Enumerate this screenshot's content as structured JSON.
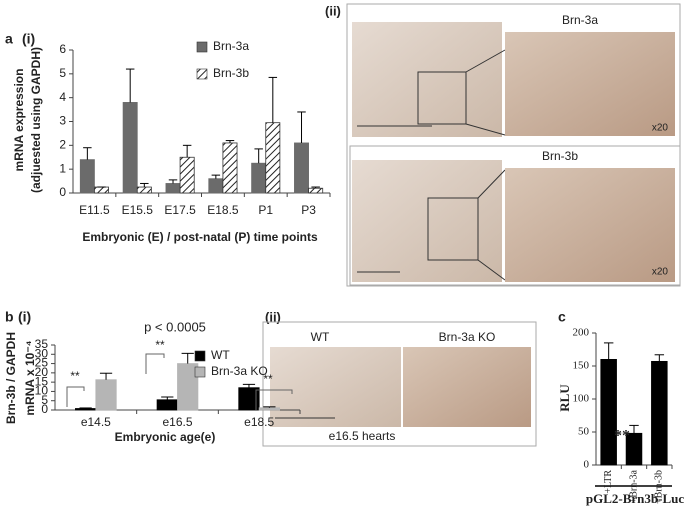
{
  "chart_data": [
    {
      "type": "bar",
      "xlabel": "Embryonic  (E) / post-natal (P) time points",
      "ylabel": [
        "mRNA expression",
        "(adjuested using GAPDH)"
      ],
      "categories": [
        "E11.5",
        "E15.5",
        "E17.5",
        "E18.5",
        "P1",
        "P3"
      ],
      "series": [
        {
          "name": "Brn-3a",
          "color": "#6b6b6b",
          "values": [
            1.4,
            3.8,
            0.4,
            0.6,
            1.25,
            2.1
          ],
          "errors": [
            0.5,
            1.4,
            0.15,
            0.15,
            0.6,
            1.3
          ]
        },
        {
          "name": "Brn-3b",
          "color": "#ffffff",
          "hatch": true,
          "values": [
            0.25,
            0.25,
            1.5,
            2.1,
            2.95,
            0.2
          ],
          "errors": [
            0,
            0.15,
            0.5,
            0.1,
            1.9,
            0.05
          ]
        }
      ],
      "ylim": [
        0,
        6
      ],
      "yticks": [
        0,
        1,
        2,
        3,
        4,
        5,
        6
      ]
    },
    {
      "type": "bar",
      "xlabel": "Embryonic age(e)",
      "ylabel": [
        "Brn-3b / GAPDH",
        "mRNA x 10⁻⁴"
      ],
      "categories": [
        "e14.5",
        "e16.5",
        "e18.5"
      ],
      "series": [
        {
          "name": "WT",
          "color": "#000000",
          "values": [
            0.8,
            5.5,
            12
          ],
          "errors": [
            0.3,
            1.5,
            1.8
          ]
        },
        {
          "name": "Brn-3a KO",
          "color": "#b5b5b5",
          "values": [
            16.3,
            25,
            1.2
          ],
          "errors": [
            3.5,
            5.5,
            0.5
          ]
        }
      ],
      "annotations": [
        "p < 0.0005",
        "**",
        "**",
        "**"
      ],
      "ylim": [
        0,
        35
      ],
      "yticks": [
        0,
        5,
        10,
        15,
        20,
        25,
        30,
        35
      ]
    },
    {
      "type": "bar",
      "xlabel": "pGL2-Brn3b-Luc",
      "ylabel": [
        "RLU"
      ],
      "categories": [
        "+LTR",
        "+Brn-3a",
        "+Brn-3b"
      ],
      "series": [
        {
          "name": null,
          "color": "#000000",
          "values": [
            160,
            48,
            157
          ],
          "errors": [
            25,
            12,
            10
          ]
        }
      ],
      "annotations": [
        "**"
      ],
      "ylim": [
        0,
        200
      ],
      "yticks": [
        0,
        50,
        100,
        150,
        200
      ]
    }
  ],
  "figure_labels": {
    "a": "a",
    "a_i": "(i)",
    "a_ii": "(ii)",
    "b": "b",
    "b_i": "(i)",
    "b_ii": "(ii)",
    "c": "c"
  },
  "images": {
    "top_label": "Brn-3a",
    "bottom_label": "Brn-3b",
    "magnification": "x20",
    "wt": "WT",
    "ko": "Brn-3a KO",
    "caption": "e16.5 hearts"
  }
}
